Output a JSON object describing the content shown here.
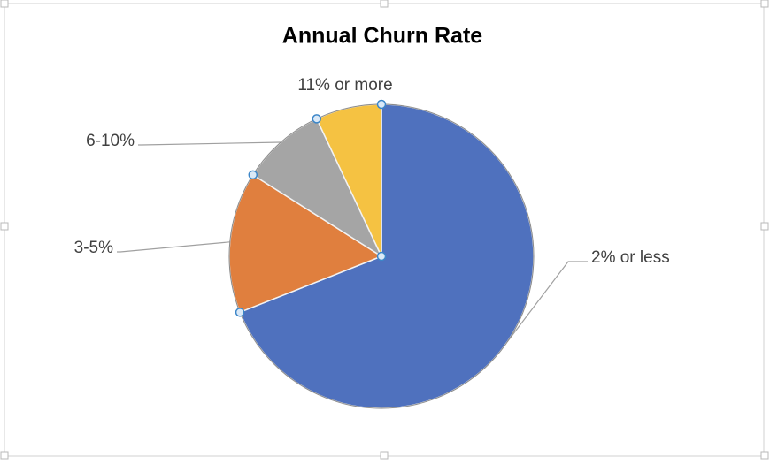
{
  "chart_data": {
    "type": "pie",
    "title": "Annual Churn Rate",
    "categories": [
      "2% or less",
      "3-5%",
      "6-10%",
      "11% or more"
    ],
    "values": [
      69,
      15,
      9,
      7
    ],
    "colors": [
      "#4f71be",
      "#e07f3e",
      "#a5a5a5",
      "#f5c242"
    ]
  }
}
